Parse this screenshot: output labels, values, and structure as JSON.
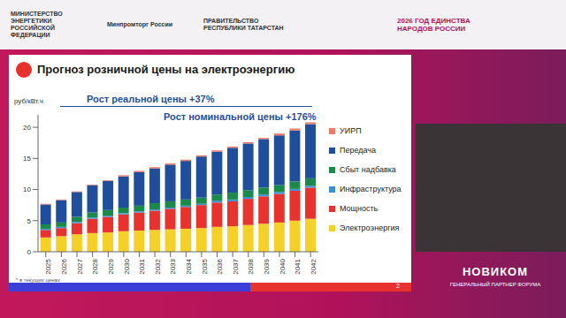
{
  "header": {
    "logos": [
      "МИНИСТЕРСТВО ЭНЕРГЕТИКИ РОССИЙСКОЙ ФЕДЕРАЦИИ",
      "Минпромторг России",
      "ПРАВИТЕЛЬСТВО РЕСПУБЛИКИ ТАТАРСТАН",
      "2026 ГОД ЕДИНСТВА НАРОДОВ РОССИИ"
    ]
  },
  "footer": {
    "brand": "НОВИКОМ",
    "caption": "ГЕНЕРАЛЬНЫЙ ПАРТНЕР ФОРУМА"
  },
  "slide": {
    "footnote": "* в текущих ценах",
    "page_number": 2
  },
  "chart_data": {
    "type": "bar",
    "stacked": true,
    "title": "Прогноз розничной цены на электроэнергию",
    "y_label": "руб/кВт.ч",
    "annotations": [
      "Рост реальной цены +37%",
      "Рост номинальной цены +176%"
    ],
    "categories": [
      "2025",
      "2026",
      "2027",
      "2028",
      "2029",
      "2030",
      "2031",
      "2032",
      "2033",
      "2034",
      "2035",
      "2036",
      "2037",
      "2038",
      "2039",
      "2040",
      "2041",
      "2042"
    ],
    "series": [
      {
        "name": "Электроэнергия",
        "color": "#f5d027",
        "values": [
          2.3,
          2.5,
          2.8,
          3.0,
          3.1,
          3.3,
          3.4,
          3.5,
          3.6,
          3.7,
          3.8,
          4.0,
          4.1,
          4.3,
          4.5,
          4.7,
          5.0,
          5.3
        ]
      },
      {
        "name": "Мощность",
        "color": "#e8322d",
        "values": [
          1.2,
          1.3,
          1.8,
          2.3,
          2.5,
          2.7,
          2.9,
          3.1,
          3.3,
          3.5,
          3.7,
          3.9,
          4.0,
          4.2,
          4.4,
          4.6,
          4.8,
          5.0
        ]
      },
      {
        "name": "Инфраструктура",
        "color": "#3a8fd8",
        "values": [
          0.2,
          0.2,
          0.2,
          0.2,
          0.2,
          0.2,
          0.2,
          0.2,
          0.2,
          0.2,
          0.2,
          0.3,
          0.3,
          0.3,
          0.3,
          0.3,
          0.3,
          0.3
        ]
      },
      {
        "name": "Сбыт надбавка",
        "color": "#1a8a4a",
        "values": [
          0.7,
          0.7,
          0.8,
          0.8,
          0.9,
          0.9,
          0.9,
          1.0,
          1.0,
          1.0,
          1.0,
          1.0,
          1.1,
          1.1,
          1.1,
          1.1,
          1.2,
          1.2
        ]
      },
      {
        "name": "Передача",
        "color": "#1f4e9c",
        "values": [
          3.2,
          3.6,
          4.0,
          4.4,
          4.7,
          5.0,
          5.4,
          5.6,
          5.9,
          6.2,
          6.6,
          6.9,
          7.2,
          7.5,
          7.8,
          8.0,
          8.2,
          8.7
        ]
      },
      {
        "name": "УИРП",
        "color": "#f07a6a",
        "values": [
          0.1,
          0.1,
          0.1,
          0.1,
          0.1,
          0.2,
          0.2,
          0.2,
          0.2,
          0.2,
          0.2,
          0.2,
          0.2,
          0.2,
          0.2,
          0.3,
          0.3,
          0.3
        ]
      }
    ],
    "ylim": [
      0,
      22
    ],
    "yticks": [
      0,
      5,
      10,
      15,
      20
    ],
    "grid": false,
    "legend": "right"
  }
}
